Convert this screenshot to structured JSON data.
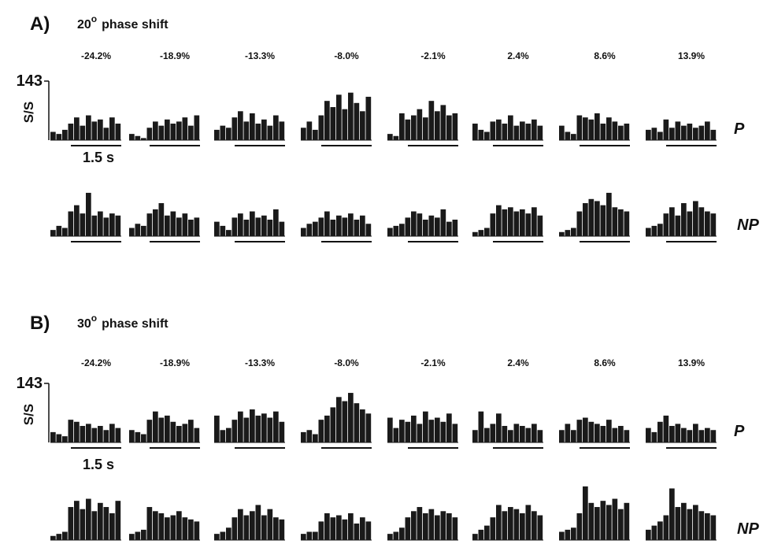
{
  "panels": [
    {
      "label": "A)",
      "title_number": "20",
      "title_sup": "o",
      "title_text": "phase shift",
      "columns": [
        "-24.2%",
        "-18.9%",
        "-13.3%",
        "-8.0%",
        "-2.1%",
        "2.4%",
        "8.6%",
        "13.9%"
      ],
      "ylim": [
        0,
        143
      ],
      "yticks": [
        143
      ],
      "y_label": "S/S",
      "time_scale": "1.5 s",
      "rows": [
        {
          "label": "P",
          "histograms": [
            [
              20,
              15,
              25,
              40,
              55,
              35,
              60,
              45,
              50,
              30,
              55,
              40
            ],
            [
              15,
              10,
              5,
              30,
              45,
              35,
              50,
              40,
              45,
              55,
              35,
              60
            ],
            [
              25,
              35,
              30,
              55,
              70,
              45,
              65,
              40,
              50,
              35,
              60,
              45
            ],
            [
              30,
              45,
              25,
              60,
              95,
              80,
              110,
              75,
              115,
              90,
              70,
              105
            ],
            [
              15,
              10,
              65,
              50,
              60,
              75,
              55,
              95,
              70,
              85,
              60,
              65
            ],
            [
              40,
              25,
              20,
              45,
              50,
              40,
              60,
              35,
              45,
              40,
              50,
              35
            ],
            [
              35,
              20,
              15,
              60,
              55,
              50,
              65,
              40,
              55,
              45,
              35,
              40
            ],
            [
              25,
              30,
              20,
              50,
              30,
              45,
              35,
              40,
              30,
              35,
              45,
              25
            ]
          ]
        },
        {
          "label": "NP",
          "histograms": [
            [
              15,
              25,
              20,
              60,
              75,
              55,
              105,
              50,
              60,
              45,
              55,
              50
            ],
            [
              20,
              30,
              25,
              55,
              65,
              80,
              50,
              60,
              45,
              55,
              40,
              45
            ],
            [
              35,
              25,
              15,
              45,
              55,
              40,
              60,
              45,
              50,
              40,
              65,
              35
            ],
            [
              20,
              30,
              35,
              45,
              60,
              40,
              50,
              45,
              55,
              40,
              50,
              30
            ],
            [
              20,
              25,
              30,
              45,
              60,
              55,
              40,
              50,
              45,
              65,
              35,
              40
            ],
            [
              10,
              15,
              20,
              55,
              75,
              65,
              70,
              60,
              65,
              55,
              70,
              50
            ],
            [
              10,
              15,
              20,
              60,
              80,
              90,
              85,
              75,
              105,
              70,
              65,
              60
            ],
            [
              20,
              25,
              30,
              55,
              70,
              50,
              80,
              60,
              85,
              70,
              60,
              55
            ]
          ]
        }
      ]
    },
    {
      "label": "B)",
      "title_number": "30",
      "title_sup": "o",
      "title_text": "phase shift",
      "columns": [
        "-24.2%",
        "-18.9%",
        "-13.3%",
        "-8.0%",
        "-2.1%",
        "2.4%",
        "8.6%",
        "13.9%"
      ],
      "ylim": [
        0,
        143
      ],
      "yticks": [
        143
      ],
      "y_label": "S/S",
      "time_scale": "1.5 s",
      "rows": [
        {
          "label": "P",
          "histograms": [
            [
              25,
              20,
              15,
              55,
              50,
              40,
              45,
              35,
              40,
              30,
              45,
              35
            ],
            [
              30,
              25,
              20,
              55,
              75,
              60,
              65,
              50,
              40,
              45,
              55,
              35
            ],
            [
              65,
              30,
              35,
              55,
              75,
              60,
              80,
              65,
              70,
              60,
              75,
              50
            ],
            [
              25,
              30,
              20,
              55,
              65,
              85,
              110,
              100,
              120,
              95,
              80,
              70
            ],
            [
              60,
              35,
              55,
              50,
              65,
              45,
              75,
              55,
              60,
              50,
              70,
              45
            ],
            [
              30,
              75,
              35,
              45,
              70,
              40,
              30,
              45,
              40,
              35,
              45,
              30
            ],
            [
              30,
              45,
              30,
              55,
              60,
              50,
              45,
              40,
              55,
              35,
              40,
              30
            ],
            [
              35,
              25,
              50,
              65,
              40,
              45,
              35,
              30,
              45,
              30,
              35,
              30
            ]
          ]
        },
        {
          "label": "NP",
          "histograms": [
            [
              10,
              15,
              20,
              80,
              95,
              75,
              100,
              70,
              90,
              80,
              65,
              95
            ],
            [
              15,
              20,
              25,
              80,
              70,
              65,
              55,
              60,
              70,
              55,
              50,
              45
            ],
            [
              15,
              20,
              30,
              55,
              75,
              60,
              70,
              85,
              60,
              75,
              55,
              50
            ],
            [
              15,
              20,
              20,
              45,
              65,
              55,
              60,
              50,
              65,
              40,
              55,
              45
            ],
            [
              15,
              20,
              30,
              55,
              70,
              80,
              65,
              75,
              60,
              70,
              65,
              55
            ],
            [
              15,
              25,
              35,
              55,
              85,
              70,
              80,
              75,
              65,
              85,
              70,
              60
            ],
            [
              20,
              25,
              30,
              65,
              130,
              90,
              80,
              95,
              85,
              100,
              75,
              90
            ],
            [
              25,
              35,
              45,
              60,
              125,
              80,
              90,
              75,
              85,
              70,
              65,
              60
            ]
          ]
        }
      ]
    }
  ]
}
